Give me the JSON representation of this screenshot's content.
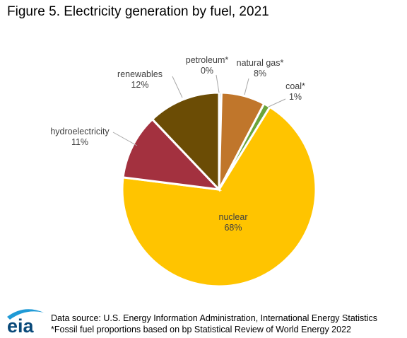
{
  "chart_data": {
    "type": "pie",
    "title": "Figure 5. Electricity generation by fuel, 2021",
    "slices": [
      {
        "label": "petroleum*",
        "pct_label": "0%",
        "value": 0.4,
        "color": "#2e7fc7"
      },
      {
        "label": "natural gas*",
        "pct_label": "8%",
        "value": 7.3,
        "color": "#c0762b"
      },
      {
        "label": "coal*",
        "pct_label": "1%",
        "value": 1.1,
        "color": "#6aa43a"
      },
      {
        "label": "nuclear",
        "pct_label": "68%",
        "value": 68.2,
        "color": "#ffc400"
      },
      {
        "label": "hydroelectricity",
        "pct_label": "11%",
        "value": 10.9,
        "color": "#a3313f"
      },
      {
        "label": "renewables",
        "pct_label": "12%",
        "value": 12.1,
        "color": "#6b4c05"
      }
    ]
  },
  "footer": {
    "line1": "Data source: U.S. Energy Information Administration, International Energy Statistics",
    "line2": "*Fossil fuel proportions based on bp Statistical Review of World Energy 2022"
  },
  "logo": {
    "text": "eia",
    "color": "#0a4a7a",
    "swoosh_color": "#1f9ad6"
  }
}
